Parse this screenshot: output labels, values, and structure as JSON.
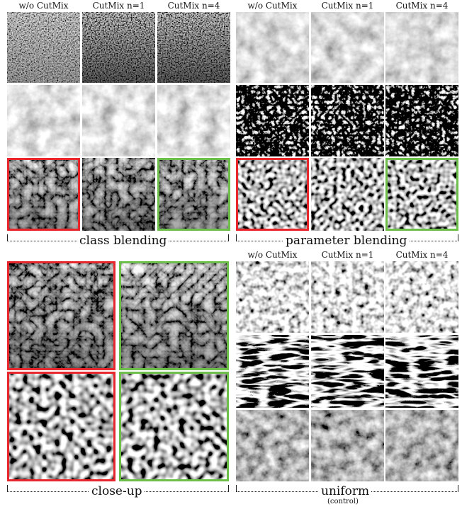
{
  "column_headers": {
    "top_left": [
      "w/o CutMix",
      "CutMix n=1",
      "CutMix n=4"
    ],
    "top_right": [
      "w/o CutMix",
      "CutMix n=1",
      "CutMix n=4"
    ],
    "bottom_right": [
      "w/o CutMix",
      "CutMix n=1",
      "CutMix n=4"
    ]
  },
  "captions": {
    "class_blending": "class blending",
    "parameter_blending": "parameter blending",
    "close_up": "close-up",
    "uniform": "uniform",
    "uniform_sub": "(control)"
  },
  "highlight_colors": {
    "red": "#e8262b",
    "green": "#6cc04a"
  }
}
